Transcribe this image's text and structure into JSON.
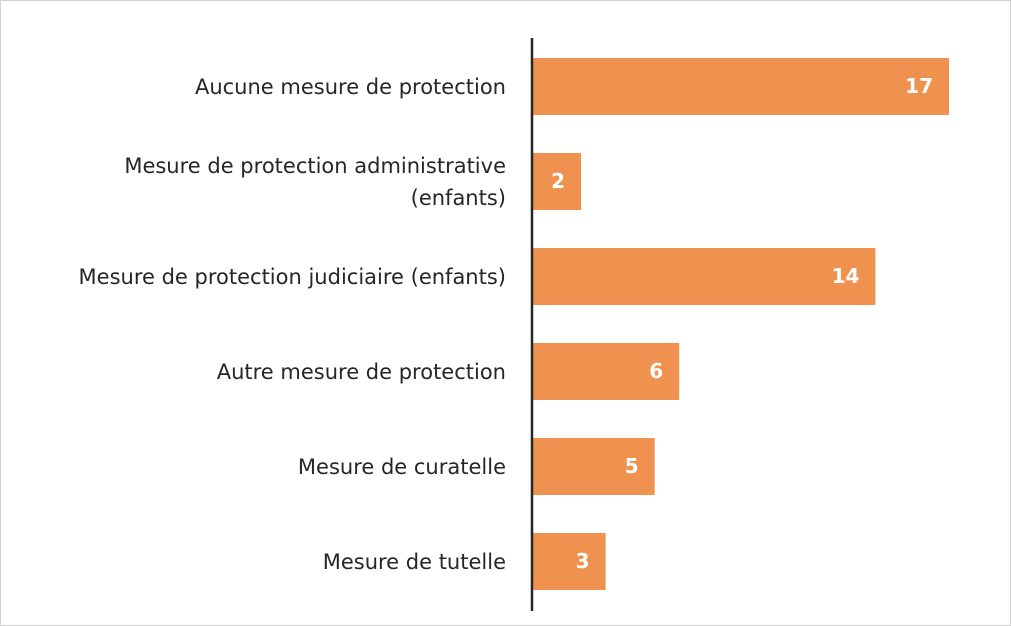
{
  "chart_data": {
    "type": "bar",
    "orientation": "horizontal",
    "categories": [
      "Aucune mesure de protection",
      "Mesure de protection administrative (enfants)",
      "Mesure de protection judiciaire (enfants)",
      "Autre mesure de protection",
      "Mesure de curatelle",
      "Mesure de tutelle"
    ],
    "values": [
      17,
      2,
      14,
      6,
      5,
      3
    ],
    "color": "#f0924f",
    "xlim": [
      0,
      17
    ]
  }
}
